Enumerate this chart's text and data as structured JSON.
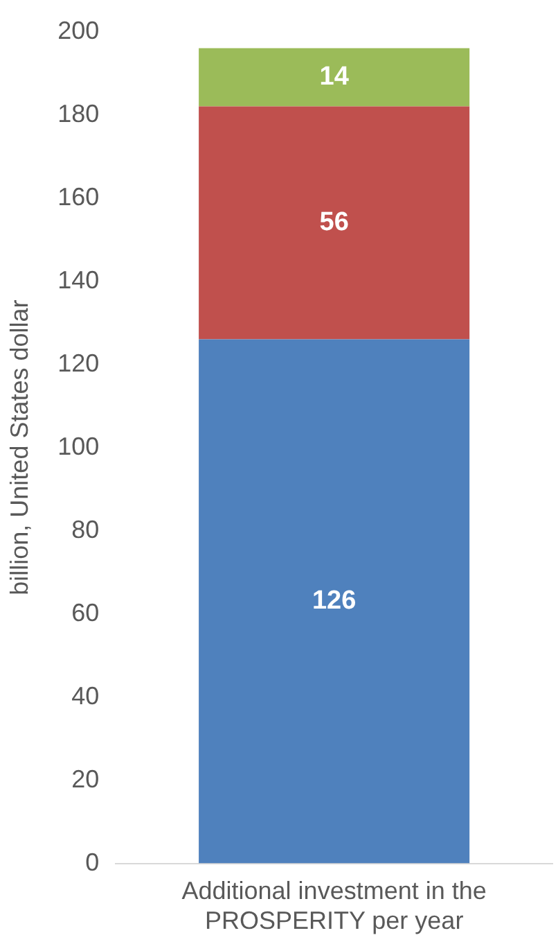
{
  "chart_data": {
    "type": "bar",
    "stacked": true,
    "ylabel": "billion, United States dollar",
    "categories": [
      "Additional investment in the PROSPERITY per year"
    ],
    "series": [
      {
        "color": "#4f81bd",
        "values": [
          126
        ]
      },
      {
        "color": "#c0504d",
        "values": [
          56
        ]
      },
      {
        "color": "#9bbb59",
        "values": [
          14
        ]
      }
    ],
    "ylim": [
      0,
      200
    ],
    "yticks": [
      0,
      20,
      40,
      60,
      80,
      100,
      120,
      140,
      160,
      180,
      200
    ],
    "grid": false,
    "legend": false,
    "data_labels": true
  }
}
